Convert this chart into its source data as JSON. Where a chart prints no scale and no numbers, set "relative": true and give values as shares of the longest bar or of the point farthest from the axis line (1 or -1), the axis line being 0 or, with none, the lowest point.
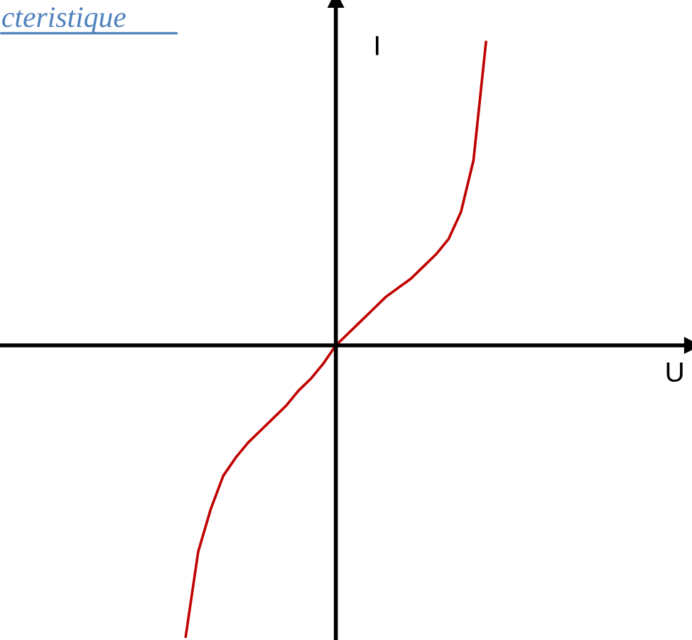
{
  "chart_data": {
    "type": "line",
    "title": "cteristique",
    "annotations": [
      "U"
    ],
    "ylabel": "I",
    "relative": true,
    "categories": [
      null,
      null,
      null,
      null,
      null,
      null,
      null,
      null,
      null,
      null,
      null,
      null,
      null,
      null,
      null,
      null,
      null,
      null,
      null,
      null,
      null,
      null,
      null,
      null,
      null
    ],
    "series": [
      {
        "color": "#c00000",
        "values": [
          -0.96,
          -0.68,
          -0.54,
          -0.43,
          -0.37,
          -0.32,
          -0.28,
          -0.24,
          -0.2,
          -0.15,
          -0.11,
          -0.06,
          0,
          0.04,
          0.08,
          0.12,
          0.16,
          0.19,
          0.22,
          0.26,
          0.3,
          0.35,
          0.44,
          0.61,
          1
        ]
      }
    ]
  }
}
